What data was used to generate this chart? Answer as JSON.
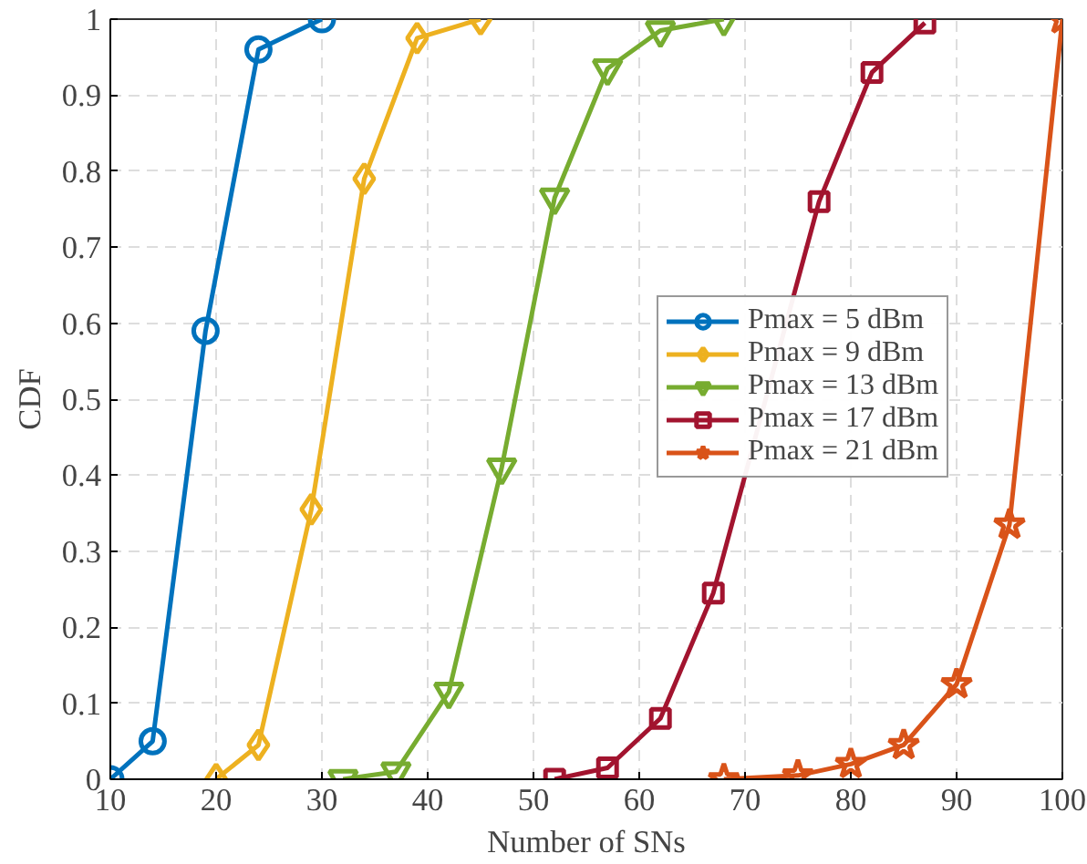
{
  "chart_data": {
    "type": "line",
    "xlabel": "Number of SNs",
    "ylabel": "CDF",
    "xlim": [
      10,
      100
    ],
    "xticks": [
      10,
      20,
      30,
      40,
      50,
      60,
      70,
      80,
      90,
      100
    ],
    "ylim": [
      0,
      1
    ],
    "yticks": [
      0,
      0.1,
      0.2,
      0.3,
      0.4,
      0.5,
      0.6,
      0.7,
      0.8,
      0.9,
      1
    ],
    "grid": true,
    "legend": "right",
    "line_style": "solid",
    "series": [
      {
        "name": "Pmax = 5 dBm",
        "color": "#0072bd",
        "marker": "circle",
        "x": [
          10,
          14,
          19,
          24,
          30
        ],
        "values": [
          0,
          0.05,
          0.59,
          0.96,
          1.0
        ]
      },
      {
        "name": "Pmax = 9 dBm",
        "color": "#edb120",
        "marker": "diamond",
        "x": [
          20,
          24,
          29,
          34,
          39,
          45
        ],
        "values": [
          0,
          0.045,
          0.355,
          0.79,
          0.975,
          1.0
        ]
      },
      {
        "name": "Pmax = 13 dBm",
        "color": "#77ac30",
        "marker": "triangle",
        "x": [
          32,
          37,
          42,
          47,
          52,
          57,
          62,
          68
        ],
        "values": [
          0,
          0.01,
          0.115,
          0.41,
          0.765,
          0.935,
          0.985,
          1.0
        ]
      },
      {
        "name": "Pmax = 17 dBm",
        "color": "#a2142f",
        "marker": "square",
        "x": [
          52,
          57,
          62,
          67,
          77,
          82,
          87
        ],
        "values": [
          0,
          0.015,
          0.08,
          0.245,
          0.76,
          0.93,
          0.995
        ]
      },
      {
        "name": "Pmax = 21 dBm",
        "color": "#d95319",
        "marker": "star",
        "x": [
          68,
          75,
          80,
          85,
          90,
          95,
          100
        ],
        "values": [
          0,
          0.005,
          0.02,
          0.045,
          0.125,
          0.335,
          1.0
        ]
      }
    ]
  }
}
